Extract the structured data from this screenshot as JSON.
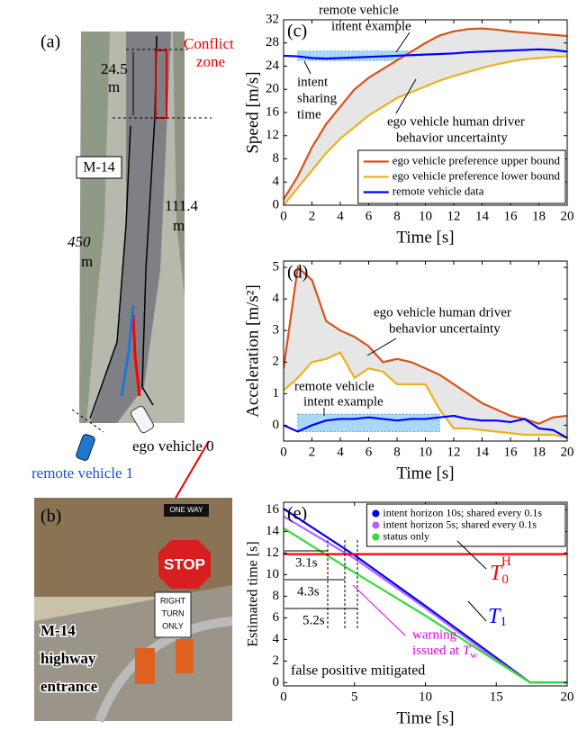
{
  "figure": {
    "a_label": "(a)",
    "conflict_zone": [
      "Conflict",
      "zone"
    ],
    "dist_conflict": [
      "24.5",
      "m"
    ],
    "road_name": "M-14",
    "dist_450": [
      "450",
      "m"
    ],
    "dist_111": [
      "111.4",
      "m"
    ],
    "ego_vehicle": "ego vehicle 0",
    "remote_vehicle": "remote vehicle 1",
    "b_label": "(b)",
    "entrance": [
      "M-14",
      "highway",
      "entrance"
    ],
    "signs": [
      "ONE WAY",
      "STOP",
      "RIGHT",
      "TURN",
      "ONLY"
    ]
  },
  "chart_data": [
    {
      "type": "line",
      "panel_label": "(c)",
      "x_label": "Time [s]",
      "y_label": "Speed [m/s]",
      "x": [
        0,
        1,
        2,
        3,
        4,
        5,
        6,
        7,
        8,
        9,
        10,
        11,
        12,
        13,
        14,
        15,
        16,
        17,
        18,
        19,
        20
      ],
      "xlim": [
        0,
        20
      ],
      "xticks": [
        0,
        2,
        4,
        6,
        8,
        10,
        12,
        14,
        16,
        18,
        20
      ],
      "ylim": [
        0,
        32
      ],
      "yticks": [
        0,
        4,
        8,
        12,
        16,
        20,
        24,
        28,
        32
      ],
      "legend": "lower right",
      "fill_between": [
        0,
        1
      ],
      "fill_color": "#e6e6e6",
      "highlight_x": [
        1,
        11
      ],
      "highlight_y": [
        25,
        26.6
      ],
      "highlight_color": "#a8d8f5",
      "annotations": [
        "remote vehicle",
        "intent example",
        "intent",
        "sharing",
        "time",
        "ego vehicle human driver",
        "behavior uncertainty"
      ],
      "series": [
        {
          "name": "ego vehicle preference upper bound",
          "color": "#d95319",
          "values": [
            1,
            5,
            10,
            14,
            17,
            20,
            22,
            23.5,
            25,
            26.5,
            28,
            29.3,
            30,
            30.4,
            30.5,
            30.3,
            30,
            29.8,
            29.6,
            29.4,
            29.2
          ]
        },
        {
          "name": "ego vehicle preference lower bound",
          "color": "#edb120",
          "values": [
            0,
            3,
            6,
            9,
            11.5,
            13.5,
            15.5,
            17,
            18.5,
            19.5,
            20.5,
            21.5,
            22.3,
            23,
            23.7,
            24.3,
            24.8,
            25.2,
            25.4,
            25.6,
            25.7
          ]
        },
        {
          "name": "remote vehicle data",
          "color": "#0000ff",
          "values": [
            25.8,
            25.7,
            25.4,
            25.3,
            25.4,
            25.5,
            25.6,
            25.7,
            25.8,
            25.9,
            26,
            26.1,
            26.2,
            26.4,
            26.5,
            26.6,
            26.7,
            26.8,
            26.9,
            26.8,
            26.5
          ]
        }
      ]
    },
    {
      "type": "line",
      "panel_label": "(d)",
      "x_label": "Time [s]",
      "y_label": "Acceleration [m/s²]",
      "x": [
        0,
        1,
        2,
        3,
        4,
        5,
        6,
        7,
        8,
        9,
        10,
        11,
        12,
        13,
        14,
        15,
        16,
        17,
        18,
        19,
        20
      ],
      "xlim": [
        0,
        20
      ],
      "xticks": [
        0,
        2,
        4,
        6,
        8,
        10,
        12,
        14,
        16,
        18,
        20
      ],
      "ylim": [
        -0.5,
        5.2
      ],
      "yticks": [
        0,
        1,
        2,
        3,
        4,
        5
      ],
      "fill_between": [
        0,
        1
      ],
      "fill_color": "#e6e6e6",
      "highlight_x": [
        1,
        11
      ],
      "highlight_y": [
        -0.2,
        0.35
      ],
      "highlight_color": "#a8d8f5",
      "annotations": [
        "ego vehicle human driver",
        "behavior uncertainty",
        "remote vehicle",
        "intent example"
      ],
      "series": [
        {
          "name": "ego vehicle preference upper bound",
          "color": "#d95319",
          "values": [
            1.8,
            5,
            4.6,
            3.3,
            3,
            2.8,
            2.5,
            2,
            2.1,
            2,
            1.8,
            1.6,
            1.3,
            1,
            0.7,
            0.5,
            0.3,
            0.2,
            0.05,
            0.25,
            0.3
          ]
        },
        {
          "name": "ego vehicle preference lower bound",
          "color": "#edb120",
          "values": [
            1.1,
            1.5,
            2,
            2.1,
            2.3,
            1.5,
            1.8,
            1.7,
            1.3,
            1.3,
            1.3,
            0.5,
            -0.1,
            -0.1,
            -0.15,
            -0.2,
            -0.25,
            -0.3,
            -0.3,
            -0.3,
            -0.4
          ]
        },
        {
          "name": "remote vehicle data",
          "color": "#0000ff",
          "values": [
            0,
            -0.2,
            0,
            0.15,
            0.2,
            0.2,
            0.25,
            0.2,
            0.15,
            0.2,
            0.2,
            0.25,
            0.3,
            0.2,
            0.15,
            0.15,
            0.1,
            0.2,
            -0.1,
            -0.15,
            -0.4
          ]
        }
      ]
    },
    {
      "type": "line",
      "panel_label": "(e)",
      "x_label": "Time [s]",
      "y_label": "Estimated time [s]",
      "x": [
        0,
        5,
        10,
        15,
        17.4,
        20
      ],
      "xlim": [
        0,
        20
      ],
      "xticks": [
        0,
        5,
        10,
        15,
        20
      ],
      "ylim": [
        -0.3,
        16.7
      ],
      "yticks": [
        0,
        2,
        4,
        6,
        8,
        10,
        12,
        14,
        16
      ],
      "legend": "upper right",
      "annotations": [
        "3.1s",
        "4.3s",
        "5.2s",
        "warning",
        "issued at ",
        "false positive mitigated"
      ],
      "t1_symbol": {
        "base": "T",
        "sub": "1"
      },
      "t0h_symbol": {
        "base": "T",
        "sub": "0",
        "sup": "H"
      },
      "tw_symbol": {
        "base": "T",
        "sub": "w"
      },
      "series": [
        {
          "name": "intent horizon 10s; shared every 0.1s",
          "color": "#0000ff",
          "values": [
            16.1,
            11.8,
            7.1,
            2.3,
            0,
            0
          ]
        },
        {
          "name": "intent horizon 5s; shared every 0.1s",
          "color": "#b266ff",
          "values": [
            15.4,
            11.5,
            6.9,
            2.1,
            0,
            0
          ]
        },
        {
          "name": "status only",
          "color": "#33dd33",
          "values": [
            14.3,
            10.2,
            6.2,
            2,
            0,
            0
          ]
        },
        {
          "color": "#ff0000",
          "values": [
            11.9,
            11.9,
            11.9,
            11.9,
            11.9,
            11.9
          ]
        }
      ]
    }
  ]
}
